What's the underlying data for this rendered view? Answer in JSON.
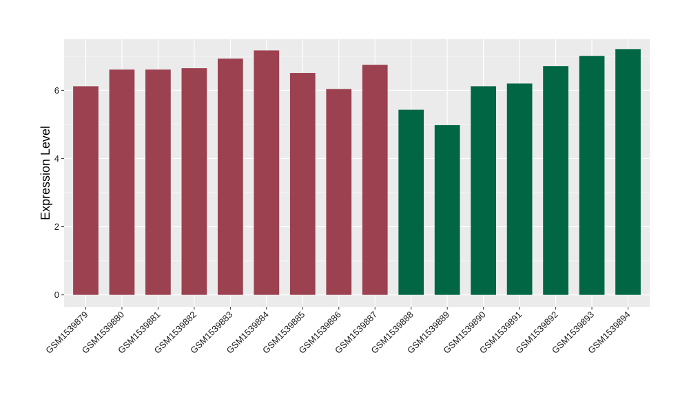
{
  "chart_data": {
    "type": "bar",
    "title": "",
    "xlabel": "",
    "ylabel": "Expression Level",
    "ylim": [
      -0.35,
      7.5
    ],
    "yticks": [
      0,
      2,
      4,
      6
    ],
    "grid": true,
    "categories": [
      "GSM1539879",
      "GSM1539880",
      "GSM1539881",
      "GSM1539882",
      "GSM1539883",
      "GSM1539884",
      "GSM1539885",
      "GSM1539886",
      "GSM1539887",
      "GSM1539888",
      "GSM1539889",
      "GSM1539890",
      "GSM1539891",
      "GSM1539892",
      "GSM1539893",
      "GSM1539894"
    ],
    "values": [
      6.12,
      6.61,
      6.61,
      6.65,
      6.93,
      7.17,
      6.51,
      6.04,
      6.75,
      5.43,
      4.98,
      6.12,
      6.2,
      6.71,
      7.01,
      7.21
    ],
    "bar_colors": [
      "#9b4150",
      "#9b4150",
      "#9b4150",
      "#9b4150",
      "#9b4150",
      "#9b4150",
      "#9b4150",
      "#9b4150",
      "#9b4150",
      "#006644",
      "#006644",
      "#006644",
      "#006644",
      "#006644",
      "#006644",
      "#006644"
    ],
    "panel_background": "#ebebeb",
    "grid_color": "#ffffff"
  }
}
